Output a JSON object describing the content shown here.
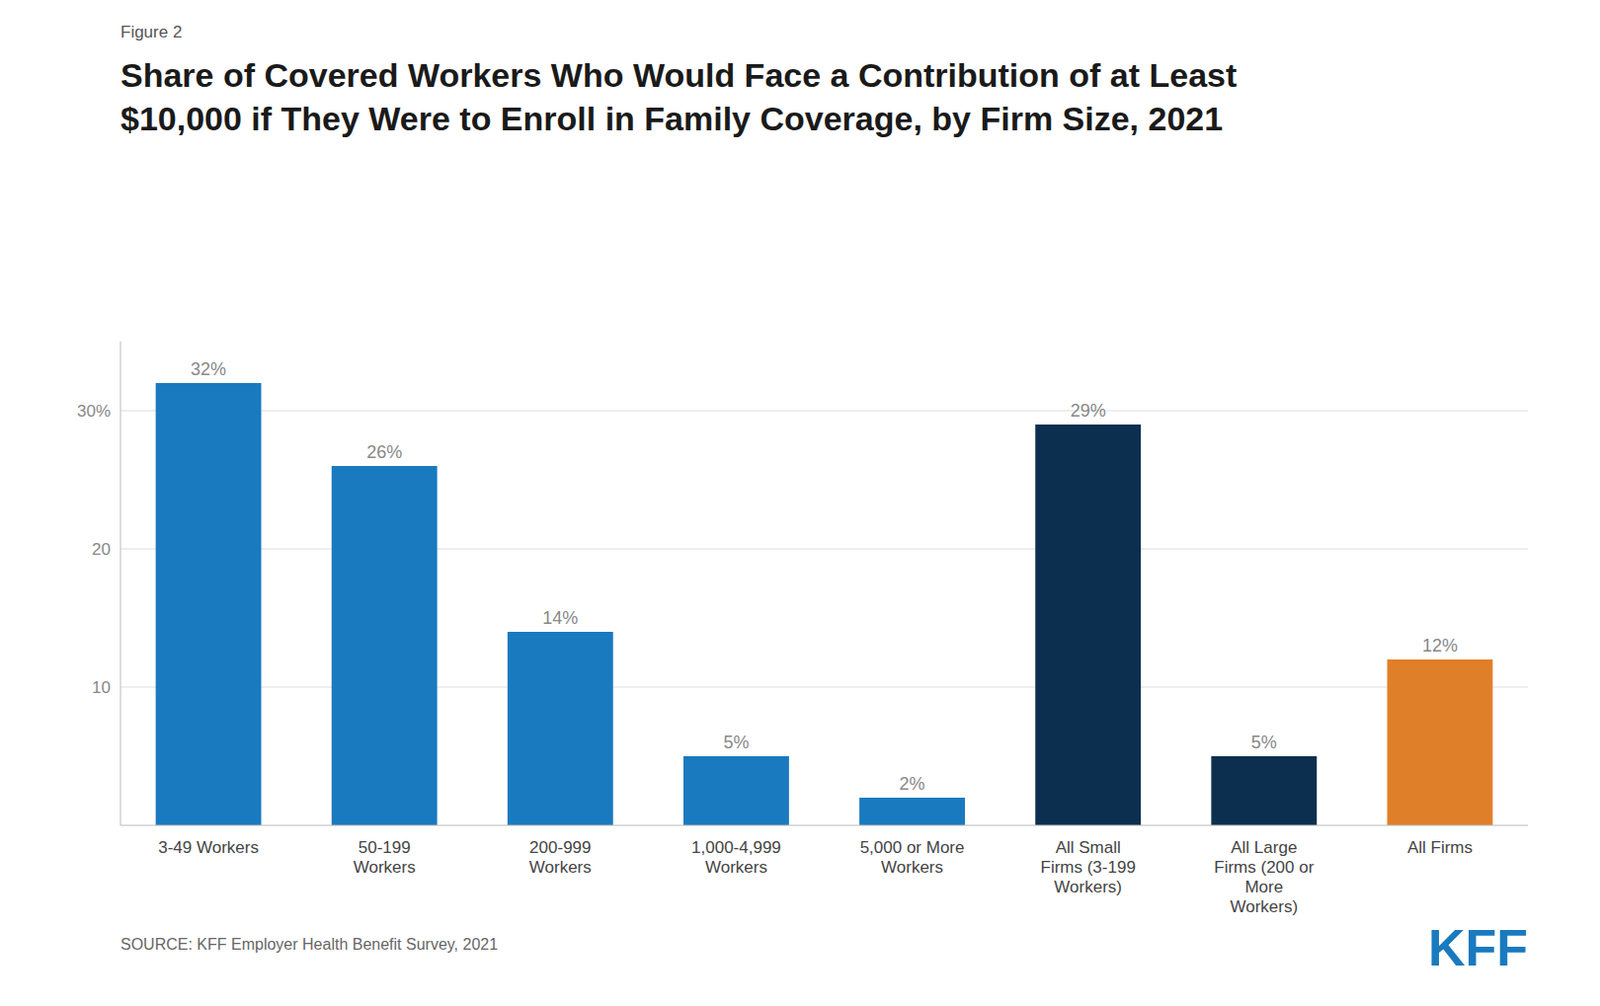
{
  "chart_data": {
    "type": "bar",
    "title": "Share of Covered Workers Who Would Face a Contribution of at Least\n$10,000 if They Were to Enroll in Family Coverage, by Firm Size, 2021",
    "categories": [
      "3-49 Workers",
      "50-199\nWorkers",
      "200-999\nWorkers",
      "1,000-4,999\nWorkers",
      "5,000 or More\nWorkers",
      "All Small\nFirms (3-199\nWorkers)",
      "All Large\nFirms (200 or\nMore\nWorkers)",
      "All Firms"
    ],
    "values": [
      32,
      26,
      14,
      5,
      2,
      29,
      5,
      12
    ],
    "value_labels": [
      "32%",
      "26%",
      "14%",
      "5%",
      "2%",
      "29%",
      "5%",
      "12%"
    ],
    "colors": [
      "#1a7abf",
      "#1a7abf",
      "#1a7abf",
      "#1a7abf",
      "#1a7abf",
      "#0d2f4f",
      "#0d2f4f",
      "#e07f2a"
    ],
    "ylim": [
      0,
      35
    ],
    "yticks": [
      10,
      20,
      {
        "value": 30,
        "label": "30%"
      }
    ],
    "grid": true,
    "data_labels": true,
    "annotations": [
      {
        "text": "Figure 2"
      },
      {
        "text": "SOURCE: KFF Employer Health Benefit Survey, 2021"
      },
      {
        "text": "KFF",
        "color": "#1a7abf"
      }
    ]
  }
}
